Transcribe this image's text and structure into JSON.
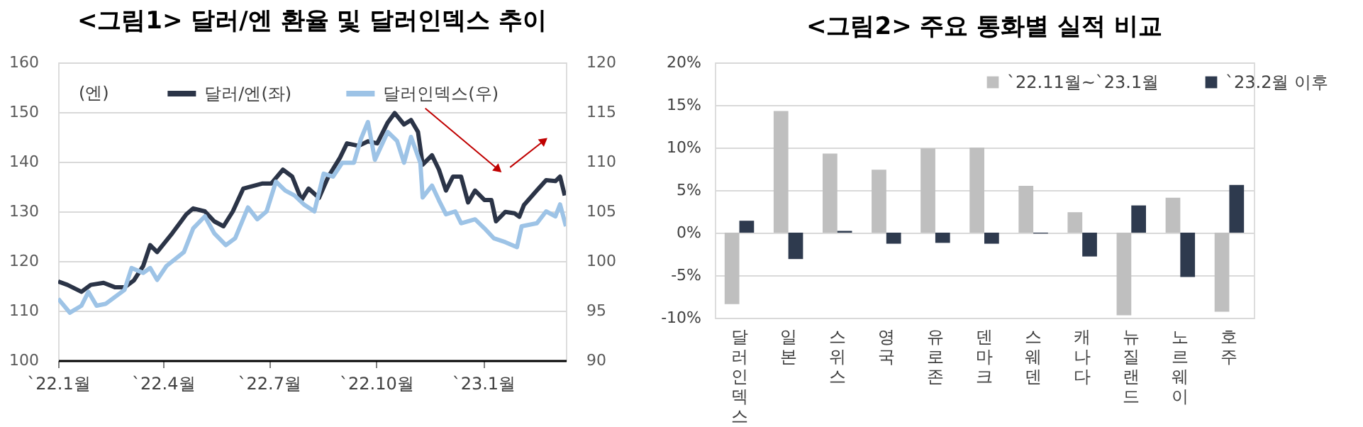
{
  "chart_data": [
    {
      "type": "line",
      "title": "<그림1> 달러/엔 환율 및 달러인덱스 추이",
      "ylabel": "(엔)",
      "grid": "y",
      "legend": "top",
      "line_style": "solid",
      "xlim": [
        "2022-01-01",
        "2023-03-13"
      ],
      "xticks": [
        {
          "value": "2022-01-01",
          "label": "`22.1월"
        },
        {
          "value": "2022-04-01",
          "label": "`22.4월"
        },
        {
          "value": "2022-07-01",
          "label": "`22.7월"
        },
        {
          "value": "2022-10-01",
          "label": "`22.10월"
        },
        {
          "value": "2023-01-01",
          "label": "`23.1월"
        }
      ],
      "ylim": [
        100,
        160
      ],
      "yticks": [
        100,
        110,
        120,
        130,
        140,
        150,
        160
      ],
      "y2lim": [
        90,
        120
      ],
      "y2ticks": [
        90,
        95,
        100,
        105,
        110,
        115,
        120
      ],
      "series": [
        {
          "name": "달러/엔(좌)",
          "color": "#2b3447",
          "x": [
            "2022-01-01",
            "2022-01-09",
            "2022-01-21",
            "2022-01-29",
            "2022-02-09",
            "2022-02-19",
            "2022-02-27",
            "2022-03-07",
            "2022-03-15",
            "2022-03-21",
            "2022-03-27",
            "2022-04-09",
            "2022-04-21",
            "2022-04-27",
            "2022-05-07",
            "2022-05-15",
            "2022-05-23",
            "2022-05-31",
            "2022-06-09",
            "2022-06-17",
            "2022-06-25",
            "2022-07-03",
            "2022-07-13",
            "2022-07-21",
            "2022-07-29",
            "2022-08-04",
            "2022-08-13",
            "2022-08-21",
            "2022-08-31",
            "2022-09-06",
            "2022-09-16",
            "2022-09-24",
            "2022-10-02",
            "2022-10-11",
            "2022-10-17",
            "2022-10-25",
            "2022-10-31",
            "2022-11-06",
            "2022-11-10",
            "2022-11-18",
            "2022-11-24",
            "2022-11-30",
            "2022-12-06",
            "2022-12-13",
            "2022-12-19",
            "2022-12-25",
            "2023-01-02",
            "2023-01-08",
            "2023-01-12",
            "2023-01-20",
            "2023-01-28",
            "2023-02-01",
            "2023-02-05",
            "2023-02-16",
            "2023-02-24",
            "2023-03-04",
            "2023-03-08",
            "2023-03-12"
          ],
          "values": [
            115.9,
            115.2,
            113.8,
            115.2,
            115.6,
            114.7,
            114.7,
            116.1,
            119.0,
            123.2,
            121.8,
            125.6,
            129.4,
            130.6,
            130.0,
            128.0,
            127.0,
            130.0,
            134.6,
            135.1,
            135.6,
            135.6,
            138.4,
            137.0,
            132.3,
            134.6,
            132.7,
            137.0,
            140.8,
            143.7,
            143.2,
            144.1,
            143.7,
            147.9,
            149.8,
            147.5,
            148.4,
            146.0,
            139.4,
            141.3,
            138.4,
            134.2,
            137.0,
            137.0,
            131.8,
            134.2,
            132.3,
            132.3,
            128.0,
            129.9,
            129.6,
            128.9,
            131.3,
            134.2,
            136.3,
            136.1,
            137.0,
            133.2
          ]
        },
        {
          "name": "달러인덱스(우)",
          "color": "#9dc3e6",
          "axis": "y2",
          "x": [
            "2022-01-01",
            "2022-01-11",
            "2022-01-21",
            "2022-01-27",
            "2022-02-03",
            "2022-02-11",
            "2022-02-19",
            "2022-02-27",
            "2022-03-05",
            "2022-03-15",
            "2022-03-21",
            "2022-03-27",
            "2022-04-04",
            "2022-04-19",
            "2022-04-27",
            "2022-05-07",
            "2022-05-15",
            "2022-05-25",
            "2022-06-02",
            "2022-06-13",
            "2022-06-21",
            "2022-06-29",
            "2022-07-07",
            "2022-07-15",
            "2022-07-23",
            "2022-07-31",
            "2022-08-09",
            "2022-08-17",
            "2022-08-25",
            "2022-09-02",
            "2022-09-12",
            "2022-09-18",
            "2022-09-24",
            "2022-09-30",
            "2022-10-11",
            "2022-10-19",
            "2022-10-25",
            "2022-10-31",
            "2022-11-08",
            "2022-11-10",
            "2022-11-18",
            "2022-11-24",
            "2022-11-30",
            "2022-12-08",
            "2022-12-13",
            "2022-12-25",
            "2023-01-02",
            "2023-01-10",
            "2023-01-20",
            "2023-01-30",
            "2023-02-03",
            "2023-02-16",
            "2023-02-24",
            "2023-03-04",
            "2023-03-08",
            "2023-03-13"
          ],
          "values": [
            96.2,
            94.8,
            95.5,
            96.9,
            95.5,
            95.7,
            96.4,
            97.1,
            99.3,
            98.8,
            99.3,
            98.1,
            99.5,
            100.9,
            103.3,
            104.5,
            102.8,
            101.6,
            102.3,
            105.4,
            104.2,
            105.0,
            108.0,
            107.1,
            106.6,
            105.7,
            105.0,
            108.8,
            108.5,
            109.9,
            109.9,
            112.3,
            114.0,
            110.2,
            113.0,
            112.1,
            109.9,
            112.5,
            109.9,
            106.4,
            107.6,
            106.1,
            104.7,
            105.0,
            103.8,
            104.2,
            103.3,
            102.3,
            101.9,
            101.4,
            103.5,
            103.8,
            105.0,
            104.5,
            105.7,
            103.5
          ]
        }
      ]
    },
    {
      "type": "bar",
      "title": "<그림2> 주요 통화별 실적 비교",
      "grid": "y",
      "legend": "top right",
      "categories": [
        "달러인덱스",
        "일본",
        "스위스",
        "영국",
        "유로존",
        "덴마크",
        "스웨덴",
        "캐나다",
        "뉴질랜드",
        "노르웨이",
        "호주"
      ],
      "ylim": [
        -10,
        20
      ],
      "yticks": [
        {
          "value": -10,
          "label": "-10%"
        },
        {
          "value": -5,
          "label": "-5%"
        },
        {
          "value": 0,
          "label": "0%"
        },
        {
          "value": 5,
          "label": "5%"
        },
        {
          "value": 10,
          "label": "10%"
        },
        {
          "value": 15,
          "label": "15%"
        },
        {
          "value": 20,
          "label": "20%"
        }
      ],
      "series": [
        {
          "name": "`22.11월~`23.1월",
          "color": "#bfbfbf",
          "values": [
            -8.4,
            14.3,
            9.3,
            7.4,
            9.9,
            10.0,
            5.5,
            2.4,
            -9.7,
            4.1,
            -9.3
          ]
        },
        {
          "name": "`23.2월 이후",
          "color": "#2e3a4e",
          "values": [
            1.4,
            -3.1,
            0.2,
            -1.3,
            -1.2,
            -1.3,
            -0.1,
            -2.8,
            3.2,
            -5.2,
            5.6
          ]
        }
      ]
    }
  ]
}
